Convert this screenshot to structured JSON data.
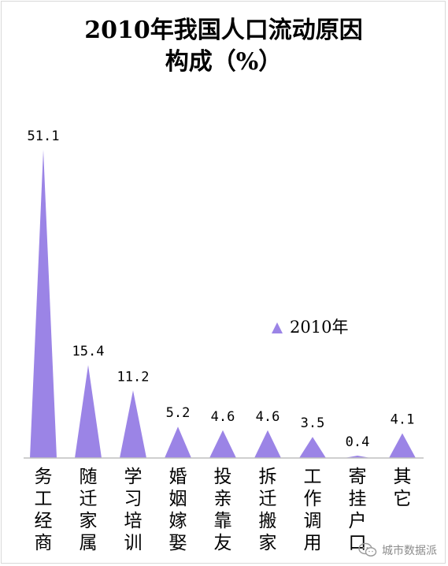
{
  "chart_data": {
    "type": "bar",
    "title_lines": [
      "2010年我国人口流动原因",
      "构成（%）"
    ],
    "categories": [
      "务工经商",
      "随迁家属",
      "学习培训",
      "婚姻嫁娶",
      "投亲靠友",
      "拆迁搬家",
      "工作调用",
      "寄挂户口",
      "其它"
    ],
    "series": [
      {
        "name": "2010年",
        "values": [
          51.1,
          15.4,
          11.2,
          5.2,
          4.6,
          4.6,
          3.5,
          0.4,
          4.1
        ],
        "labels": [
          "51.1",
          "15.4",
          "11.2",
          "5.2",
          "4.6",
          "4.6",
          "3.5",
          "0.4",
          "4.1"
        ]
      }
    ],
    "ylim": [
      0,
      51.1
    ],
    "legend_position": "right",
    "grid": false,
    "colors": {
      "series": "#9b84e6",
      "baseline": "#bfbfbf"
    }
  },
  "watermark": {
    "icon": "wechat-icon",
    "text": "城市数据派"
  }
}
